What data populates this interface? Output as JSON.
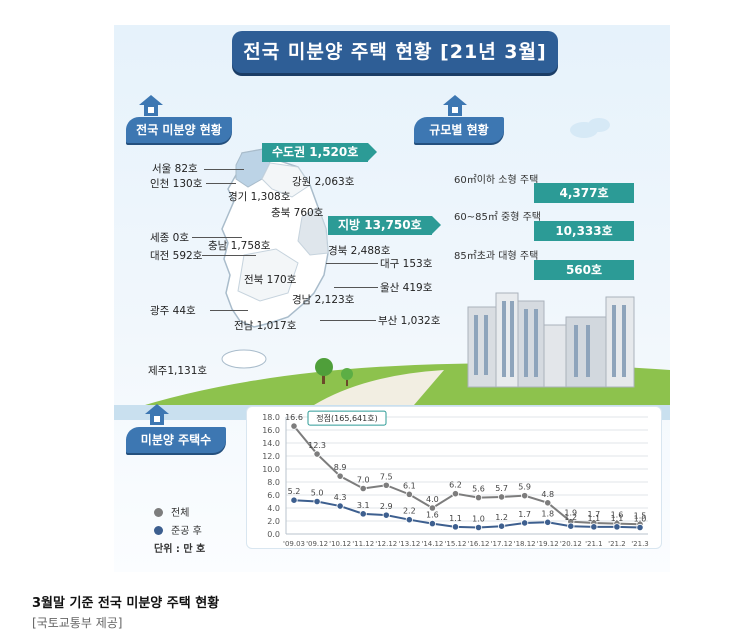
{
  "title": "전국 미분양 주택 현황 [21년 3월]",
  "region_section": {
    "header": "전국 미분양 현황",
    "capital_tag": "수도권 1,520호",
    "local_tag": "지방 13,750호",
    "regions": {
      "seoul": "서울 82호",
      "incheon": "인천 130호",
      "gyeonggi": "경기 1,308호",
      "gangwon": "강원 2,063호",
      "chungbuk": "충북 760호",
      "sejong": "세종 0호",
      "chungnam": "충남 1,758호",
      "daejeon": "대전 592호",
      "gyeongbuk": "경북 2,488호",
      "daegu": "대구 153호",
      "jeonbuk": "전북 170호",
      "ulsan": "울산 419호",
      "gyeongnam": "경남 2,123호",
      "gwangju": "광주 44호",
      "busan": "부산 1,032호",
      "jeonnam": "전남 1,017호",
      "jeju": "제주1,131호"
    }
  },
  "size_section": {
    "header": "규모별 현황",
    "items": [
      {
        "label": "60㎡이하 소형 주택",
        "value": "4,377호"
      },
      {
        "label": "60~85㎡ 중형 주택",
        "value": "10,333호"
      },
      {
        "label": "85㎡초과 대형 주택",
        "value": "560호"
      }
    ]
  },
  "trend_section": {
    "header": "미분양 주택수",
    "legend": {
      "total": "전체",
      "completed": "준공 후",
      "unit": "단위 : 만 호"
    },
    "colors": {
      "total": "#7d7d7d",
      "completed": "#3d5f8f",
      "accent": "#2c9b96"
    }
  },
  "chart_data": {
    "type": "line",
    "title": "",
    "xlabel": "",
    "ylabel": "",
    "categories": [
      "'09.03",
      "'09.12",
      "'10.12",
      "'11.12",
      "'12.12",
      "'13.12",
      "'14.12",
      "'15.12",
      "'16.12",
      "'17.12",
      "'18.12",
      "'19.12",
      "'20.12",
      "'21.1",
      "'21.2",
      "'21.3"
    ],
    "series": [
      {
        "name": "전체",
        "values": [
          16.6,
          12.3,
          8.9,
          7.0,
          7.5,
          6.1,
          4.0,
          6.2,
          5.6,
          5.7,
          5.9,
          4.8,
          1.9,
          1.7,
          1.6,
          1.5
        ],
        "labels": [
          "16.6",
          "12.3",
          "8.9",
          "7.0",
          "7.5",
          "6.1",
          "4.0",
          "6.2",
          "5.6",
          "5.7",
          "5.9",
          "4.8",
          "1.9",
          "1.7",
          "1.6",
          "1.5"
        ]
      },
      {
        "name": "준공 후",
        "values": [
          5.2,
          5.0,
          4.3,
          3.1,
          2.9,
          2.2,
          1.6,
          1.1,
          1.0,
          1.2,
          1.7,
          1.8,
          1.2,
          1.1,
          1.1,
          1.0
        ],
        "labels": [
          "5.2",
          "5.0",
          "4.3",
          "3.1",
          "2.9",
          "2.2",
          "1.6",
          "1.1",
          "1.0",
          "1.2",
          "1.7",
          "1.8",
          "1.2",
          "1.1",
          "1.1",
          "1.0"
        ]
      }
    ],
    "yticks": [
      "0.0",
      "2.0",
      "4.0",
      "6.0",
      "8.0",
      "10.0",
      "12.0",
      "14.0",
      "16.0",
      "18.0"
    ],
    "ylim": [
      0,
      18
    ],
    "grid": true,
    "annotation": {
      "text": "정점(165,641호)",
      "category_index": 0
    }
  },
  "caption": {
    "title": "3월말 기준 전국 미분양 주택 현황",
    "source": "[국토교통부 제공]"
  }
}
